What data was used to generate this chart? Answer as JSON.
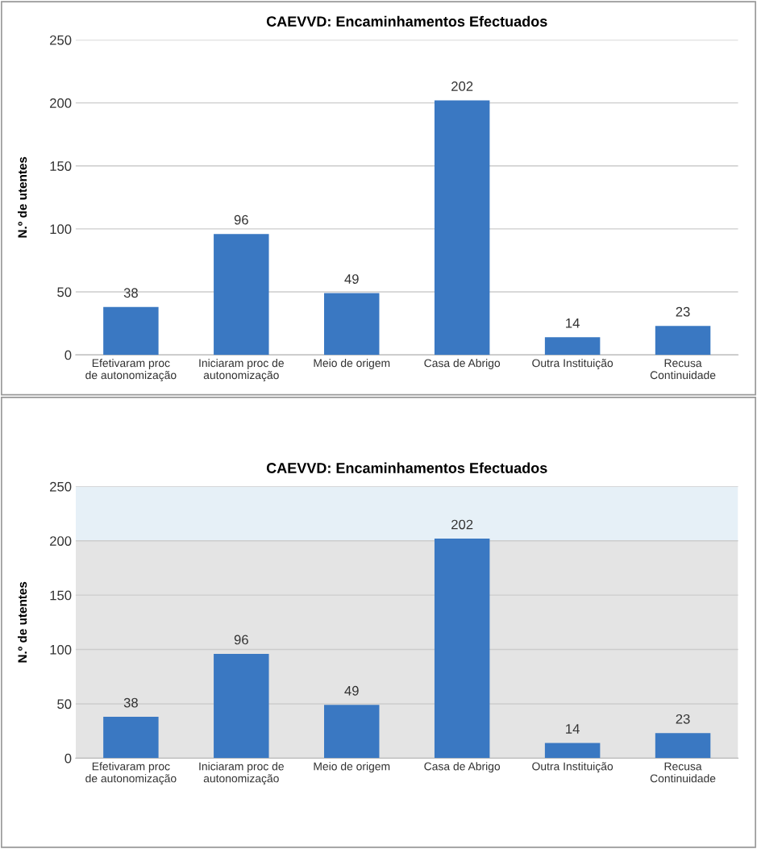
{
  "chart_data": [
    {
      "type": "bar",
      "title": "CAEVVD: Encaminhamentos Efectuados",
      "ylabel": "N.º de utentes",
      "categories": [
        "Efetivaram proc de autonomização",
        "Iniciaram proc de autonomização",
        "Meio de origem",
        "Casa de Abrigo",
        "Outra Instituição",
        "Recusa Continuidade"
      ],
      "values": [
        38,
        96,
        49,
        202,
        14,
        23
      ],
      "color": "#3a78c2",
      "ylim": [
        0,
        250
      ],
      "yticks": [
        0,
        50,
        100,
        150,
        200,
        250
      ],
      "grid": "y",
      "data_labels": true
    },
    {
      "type": "bar",
      "title": "CAEVVD: Encaminhamentos Efectuados",
      "ylabel": "N.º de utentes",
      "categories": [
        "Efetivaram proc de autonomização",
        "Iniciaram proc de autonomização",
        "Meio de origem",
        "Casa de Abrigo",
        "Outra Instituição",
        "Recusa Continuidade"
      ],
      "values": [
        38,
        96,
        49,
        202,
        14,
        23
      ],
      "color": "#3a78c2",
      "ylim": [
        0,
        250
      ],
      "yticks": [
        0,
        50,
        100,
        150,
        200,
        250
      ],
      "grid": "y",
      "data_labels": true,
      "bands": [
        {
          "axis": "y",
          "from": 0,
          "to": 200,
          "color": "#e4e4e4"
        },
        {
          "axis": "y",
          "from": 200,
          "to": 250,
          "color": "#e6f0f7"
        }
      ]
    }
  ]
}
